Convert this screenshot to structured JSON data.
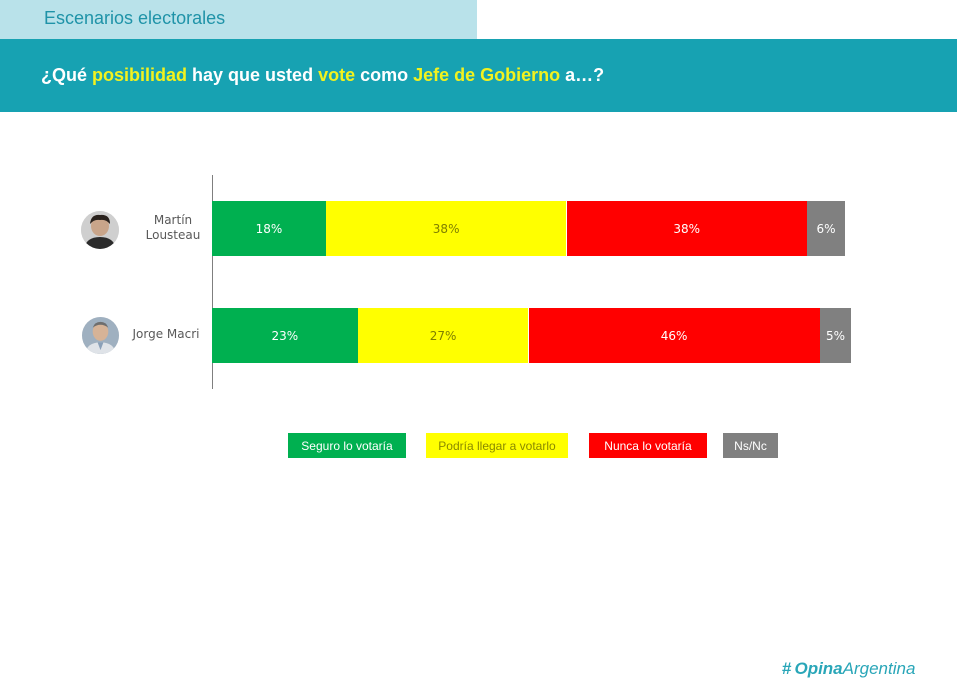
{
  "header": {
    "section_title": "Escenarios electorales",
    "question": {
      "p1": "¿Qué ",
      "h1": "posibilidad",
      "p2": " hay que usted ",
      "h2": "vote",
      "p3": " como ",
      "h3": "Jefe de Gobierno",
      "p4": " a…?"
    }
  },
  "colors": {
    "seguro": "#00b050",
    "podria": "#ffff00",
    "nunca": "#ff0000",
    "nsnc": "#808080"
  },
  "chart_data": {
    "type": "bar",
    "orientation": "horizontal",
    "stacked": true,
    "categories": [
      "Martín Lousteau",
      "Jorge Macri"
    ],
    "category_lines": [
      [
        "Martín",
        "Lousteau"
      ],
      [
        "Jorge Macri"
      ]
    ],
    "series": [
      {
        "name": "Seguro lo votaría",
        "key": "seguro",
        "values": [
          18,
          23
        ],
        "labels": [
          "18%",
          "23%"
        ]
      },
      {
        "name": "Podría llegar a votarlo",
        "key": "podria",
        "values": [
          38,
          27
        ],
        "labels": [
          "38%",
          "27%"
        ]
      },
      {
        "name": "Nunca lo votaría",
        "key": "nunca",
        "values": [
          38,
          46
        ],
        "labels": [
          "38%",
          "46%"
        ]
      },
      {
        "name": "Ns/Nc",
        "key": "nsnc",
        "values": [
          6,
          5
        ],
        "labels": [
          "6%",
          "5%"
        ]
      }
    ],
    "xlim": [
      0,
      100
    ],
    "unit": "%",
    "legend_position": "bottom"
  },
  "legend": {
    "seguro": "Seguro lo votaría",
    "podria": "Podría llegar a votarlo",
    "nunca": "Nunca lo votaría",
    "nsnc": "Ns/Nc"
  },
  "brand": {
    "mark": "#",
    "part1": "Opina",
    "part2": "Argentina"
  }
}
